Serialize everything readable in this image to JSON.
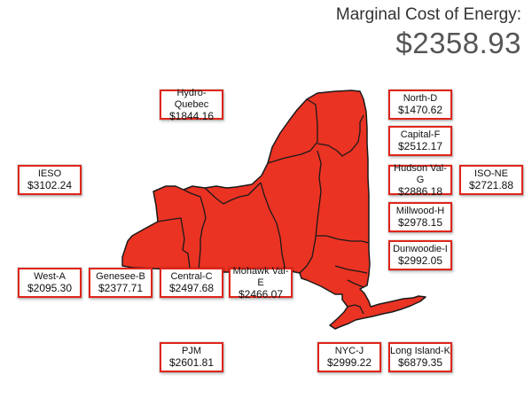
{
  "header": {
    "title": "Marginal Cost of Energy:",
    "value": "$2358.93"
  },
  "colors": {
    "map_fill": "#ea3323",
    "map_stroke": "#1a1a1a",
    "box_border": "#e0251b"
  },
  "zones": [
    {
      "id": "hydro-quebec",
      "name": "Hydro-Quebec",
      "price": "$1844.16"
    },
    {
      "id": "north-d",
      "name": "North-D",
      "price": "$1470.62"
    },
    {
      "id": "capital-f",
      "name": "Capital-F",
      "price": "$2512.17"
    },
    {
      "id": "ieso",
      "name": "IESO",
      "price": "$3102.24"
    },
    {
      "id": "hudson-val-g",
      "name": "Hudson Val-G",
      "price": "$2886.18"
    },
    {
      "id": "iso-ne",
      "name": "ISO-NE",
      "price": "$2721.88"
    },
    {
      "id": "millwood-h",
      "name": "Millwood-H",
      "price": "$2978.15"
    },
    {
      "id": "dunwoodie-i",
      "name": "Dunwoodie-I",
      "price": "$2992.05"
    },
    {
      "id": "west-a",
      "name": "West-A",
      "price": "$2095.30"
    },
    {
      "id": "genesee-b",
      "name": "Genesee-B",
      "price": "$2377.71"
    },
    {
      "id": "central-c",
      "name": "Central-C",
      "price": "$2497.68"
    },
    {
      "id": "mohawk-val-e",
      "name": "Mohawk Val-E",
      "price": "$2466.07"
    },
    {
      "id": "pjm",
      "name": "PJM",
      "price": "$2601.81"
    },
    {
      "id": "nyc-j",
      "name": "NYC-J",
      "price": "$2999.22"
    },
    {
      "id": "long-island-k",
      "name": "Long Island-K",
      "price": "$6879.35"
    }
  ]
}
